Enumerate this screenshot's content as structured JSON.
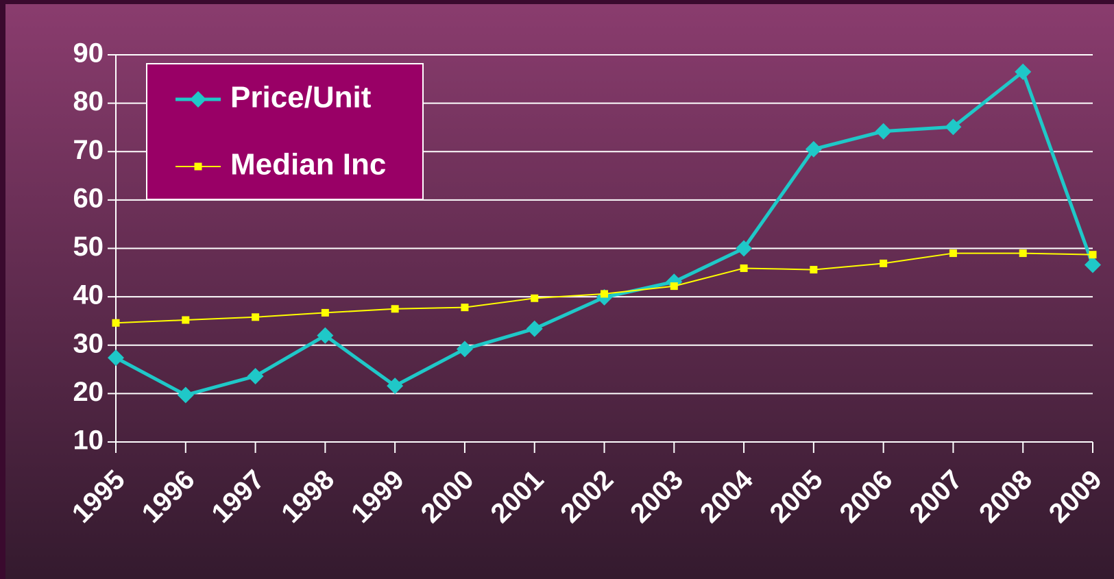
{
  "chart_data": {
    "type": "line",
    "categories": [
      "1995",
      "1996",
      "1997",
      "1998",
      "1999",
      "2000",
      "2001",
      "2002",
      "2003",
      "2004",
      "2005",
      "2006",
      "2007",
      "2008",
      "2009"
    ],
    "series": [
      {
        "name": "Price/Unit",
        "color": "#1fc8c8",
        "marker": "diamond",
        "values": [
          27.4,
          19.7,
          23.6,
          32,
          21.6,
          29.2,
          33.4,
          39.9,
          43.1,
          50,
          70.5,
          74.2,
          75.1,
          86.5,
          46.6
        ]
      },
      {
        "name": "Median Inc",
        "color": "#ffff00",
        "marker": "square",
        "values": [
          34.6,
          35.2,
          35.8,
          36.7,
          37.5,
          37.8,
          39.7,
          40.6,
          42.2,
          45.9,
          45.6,
          46.9,
          49,
          49,
          48.7
        ]
      }
    ],
    "ylim": [
      10,
      90
    ],
    "yticks": [
      10,
      20,
      30,
      40,
      50,
      60,
      70,
      80,
      90
    ],
    "grid": true,
    "legend": "upper left"
  }
}
